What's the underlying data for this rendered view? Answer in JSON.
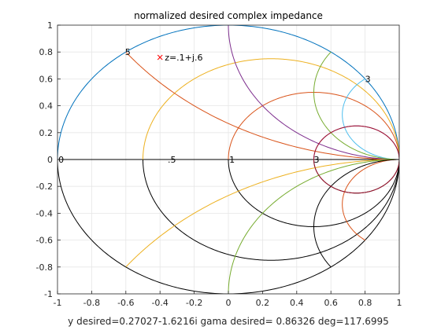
{
  "chart_data": {
    "type": "line",
    "title": "normalized desired complex impedance",
    "xlabel": "y desired=0.27027-1.6216i   gama desired= 0.86326 deg=117.6995",
    "ylabel": "",
    "xlim": [
      -1,
      1
    ],
    "ylim": [
      -1,
      1
    ],
    "x_ticks": [
      "-1",
      "-0.8",
      "-0.6",
      "-0.4",
      "-0.2",
      "0",
      "0.2",
      "0.4",
      "0.6",
      "0.8",
      "1"
    ],
    "y_ticks": [
      "1",
      "0.8",
      "0.6",
      "0.4",
      "0.2",
      "0",
      "-0.2",
      "-0.4",
      "-0.6",
      "-0.8",
      "-1"
    ],
    "grid": true,
    "curves": [
      {
        "kind": "resistance",
        "r": 0,
        "color": "#0072BD",
        "half": "upper"
      },
      {
        "kind": "resistance",
        "r": 0,
        "color": "#000000",
        "half": "lower"
      },
      {
        "kind": "resistance",
        "r": 1,
        "color": "#D95319",
        "half": "upper"
      },
      {
        "kind": "resistance",
        "r": 1,
        "color": "#000000",
        "half": "lower"
      },
      {
        "kind": "resistance",
        "r": 0.3333,
        "color": "#EDB120",
        "half": "upper"
      },
      {
        "kind": "resistance",
        "r": 0.3333,
        "color": "#000000",
        "half": "lower"
      },
      {
        "kind": "resistance",
        "r": 3,
        "color": "#7E2F8E",
        "half": "upper"
      },
      {
        "kind": "resistance",
        "r": 3,
        "color": "#000000",
        "half": "lower"
      },
      {
        "kind": "reactance",
        "x": 0.5,
        "color": "#D95319"
      },
      {
        "kind": "reactance",
        "x": 1,
        "color": "#7E2F8E"
      },
      {
        "kind": "reactance",
        "x": 3,
        "color": "#4DBEEE"
      },
      {
        "kind": "reactance",
        "x": 2,
        "color": "#77AC30"
      },
      {
        "kind": "reactance",
        "x": -0.5,
        "color": "#EDB120"
      },
      {
        "kind": "reactance",
        "x": -1,
        "color": "#77AC30"
      },
      {
        "kind": "reactance",
        "x": -3,
        "color": "#D95319"
      },
      {
        "kind": "reactance",
        "x": -2,
        "color": "#000000"
      },
      {
        "kind": "admittance",
        "g": 1,
        "color": "#A2142F"
      }
    ],
    "axis_line": {
      "from": [
        -1,
        0
      ],
      "to": [
        1,
        0
      ]
    },
    "point_labels": [
      {
        "text": "0",
        "x": -0.995,
        "y": 0
      },
      {
        "text": ".5",
        "x": -0.355,
        "y": 0
      },
      {
        "text": "1",
        "x": 0.005,
        "y": 0
      },
      {
        "text": "3",
        "x": 0.5,
        "y": 0
      },
      {
        "text": "5",
        "x": -0.605,
        "y": 0.8
      },
      {
        "text": "3",
        "x": 0.8,
        "y": 0.6
      }
    ],
    "marker": {
      "symbol": "x",
      "x": -0.4,
      "y": 0.76,
      "color": "#FF0000",
      "label": "z=.1+j.6"
    }
  }
}
